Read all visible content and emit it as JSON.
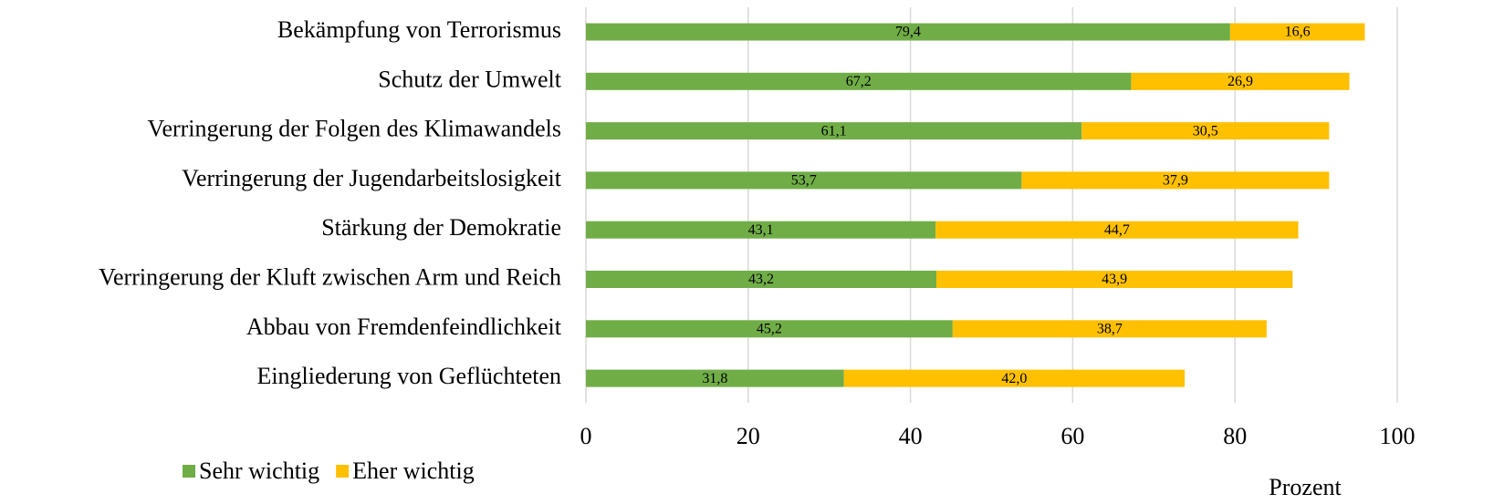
{
  "chart_data": {
    "type": "bar",
    "orientation": "horizontal",
    "stacked": true,
    "categories": [
      "Bekämpfung von Terrorismus",
      "Schutz der Umwelt",
      "Verringerung der Folgen des Klimawandels",
      "Verringerung der Jugendarbeitslosigkeit",
      "Stärkung der Demokratie",
      "Verringerung der Kluft zwischen Arm und Reich",
      "Abbau von Fremdenfeindlichkeit",
      "Eingliederung von Geflüchteten"
    ],
    "series": [
      {
        "name": "Sehr wichtig",
        "color": "#70ad47",
        "values": [
          79.4,
          67.2,
          61.1,
          53.7,
          43.1,
          43.2,
          45.2,
          31.8
        ],
        "value_labels": [
          "79,4",
          "67,2",
          "61,1",
          "53,7",
          "43,1",
          "43,2",
          "45,2",
          "31,8"
        ]
      },
      {
        "name": "Eher wichtig",
        "color": "#ffc000",
        "values": [
          16.6,
          26.9,
          30.5,
          37.9,
          44.7,
          43.9,
          38.7,
          42.0
        ],
        "value_labels": [
          "16,6",
          "26,9",
          "30,5",
          "37,9",
          "44,7",
          "43,9",
          "38,7",
          "42,0"
        ]
      }
    ],
    "xlabel": "Prozent",
    "xlim": [
      0,
      100
    ],
    "xticks": [
      0,
      20,
      40,
      60,
      80,
      100
    ],
    "grid": true,
    "legend": "bottom-left"
  }
}
